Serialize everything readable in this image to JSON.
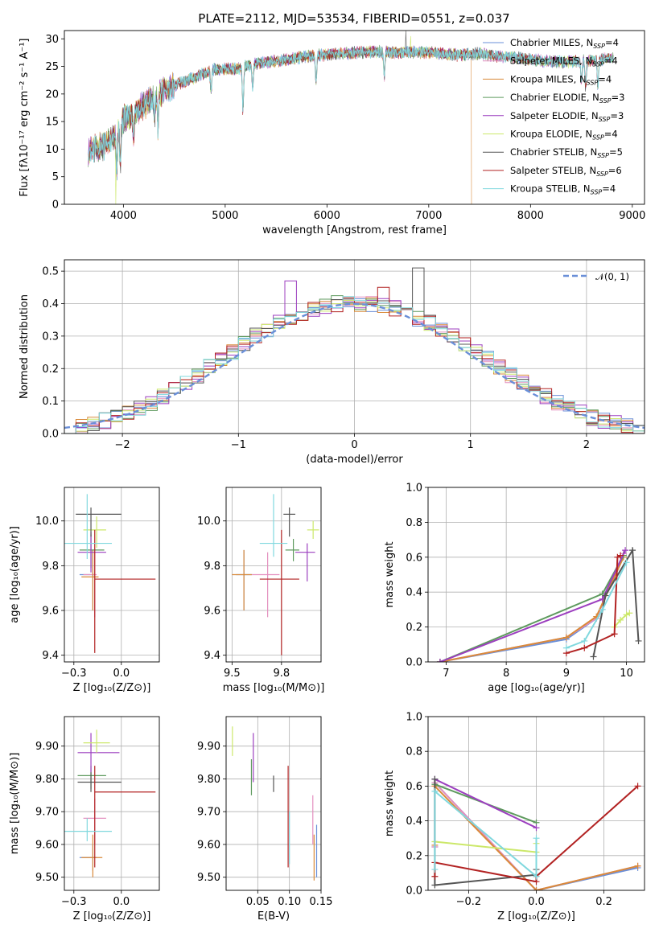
{
  "figure": {
    "title": "PLATE=2112, MJD=53534, FIBERID=0551, z=0.037"
  },
  "model_colors": {
    "Chabrier MILES": "#6a8fd8",
    "Salpeter MILES": "#e48fbf",
    "Kroupa MILES": "#d98a3a",
    "Chabrier ELODIE": "#5e9a5e",
    "Salpeter ELODIE": "#9c3fbf",
    "Kroupa ELODIE": "#cce86a",
    "Chabrier STELIB": "#555555",
    "Salpeter STELIB": "#b22222",
    "Kroupa STELIB": "#80d8de"
  },
  "legend1": [
    {
      "name": "Chabrier MILES",
      "pre": "Chabrier MILES, N",
      "sub": "SSP",
      "post": "=4"
    },
    {
      "name": "Salpeter MILES",
      "pre": "Salpeter MILES, N",
      "sub": "SSP",
      "post": "=4"
    },
    {
      "name": "Kroupa MILES",
      "pre": "Kroupa MILES, N",
      "sub": "SSP",
      "post": "=4"
    },
    {
      "name": "Chabrier ELODIE",
      "pre": "Chabrier ELODIE, N",
      "sub": "SSP",
      "post": "=3"
    },
    {
      "name": "Salpeter ELODIE",
      "pre": "Salpeter ELODIE, N",
      "sub": "SSP",
      "post": "=3"
    },
    {
      "name": "Kroupa ELODIE",
      "pre": "Kroupa ELODIE, N",
      "sub": "SSP",
      "post": "=4"
    },
    {
      "name": "Chabrier STELIB",
      "pre": "Chabrier STELIB, N",
      "sub": "SSP",
      "post": "=5"
    },
    {
      "name": "Salpeter STELIB",
      "pre": "Salpeter STELIB, N",
      "sub": "SSP",
      "post": "=6"
    },
    {
      "name": "Kroupa STELIB",
      "pre": "Kroupa STELIB, N",
      "sub": "SSP",
      "post": "=4"
    }
  ],
  "legend2": {
    "label": "𝒩(0, 1)",
    "color": "#6a8fd8"
  },
  "chart_data": [
    {
      "id": "spectrum",
      "type": "line",
      "xlabel": "wavelength [Angstrom, rest frame]",
      "ylabel": "Flux [fλ10⁻¹⁷ erg cm⁻² s⁻¹ A⁻¹]",
      "xlim": [
        3420,
        9120
      ],
      "ylim": [
        0,
        31.5
      ],
      "xticks": [
        4000,
        5000,
        6000,
        7000,
        8000,
        9000
      ],
      "yticks": [
        0,
        5,
        10,
        15,
        20,
        25,
        30
      ],
      "continuum": {
        "x": [
          3650,
          3700,
          3800,
          3900,
          4000,
          4100,
          4200,
          4300,
          4400,
          4500,
          4700,
          4900,
          5100,
          5300,
          5500,
          5700,
          5900,
          6100,
          6300,
          6500,
          6700,
          6900,
          7100,
          7300,
          7500,
          7700,
          7900,
          8100,
          8300,
          8500,
          8700,
          8820
        ],
        "y": [
          9.5,
          10,
          10.5,
          12,
          15.5,
          16.5,
          18,
          19.5,
          20.5,
          21.5,
          23,
          24.5,
          24.5,
          25.5,
          26,
          26.5,
          27,
          27.3,
          27.5,
          27.7,
          27.5,
          27.6,
          27.4,
          27,
          27.4,
          26.8,
          26.5,
          26,
          25.8,
          26,
          26.3,
          26.5
        ]
      },
      "features": [
        {
          "x": 3935,
          "y": 6
        },
        {
          "x": 3970,
          "y": 7
        },
        {
          "x": 4100,
          "y": 12
        },
        {
          "x": 4305,
          "y": 15
        },
        {
          "x": 4340,
          "y": 14
        },
        {
          "x": 4861,
          "y": 20
        },
        {
          "x": 5175,
          "y": 17
        },
        {
          "x": 5270,
          "y": 21
        },
        {
          "x": 5893,
          "y": 22
        },
        {
          "x": 6563,
          "y": 23
        },
        {
          "x": 8500,
          "y": 22
        },
        {
          "x": 8542,
          "y": 21
        },
        {
          "x": 8662,
          "y": 21
        }
      ],
      "dropouts": [
        {
          "series": "Kroupa ELODIE",
          "x": 3920
        },
        {
          "series": "Kroupa ELODIE",
          "x": 6800
        },
        {
          "series": "Kroupa MILES",
          "x": 7420
        }
      ],
      "spikes": [
        {
          "series": "Chabrier STELIB",
          "x": 6770,
          "y": 31.5
        },
        {
          "series": "Kroupa ELODIE",
          "x": 6820,
          "y": 30.5
        }
      ]
    },
    {
      "id": "residuals",
      "type": "histogram",
      "xlabel": "(data-model)/error",
      "ylabel": "Normed distribution",
      "xlim": [
        -2.5,
        2.5
      ],
      "ylim": [
        0,
        0.535
      ],
      "xticks": [
        -2,
        -1,
        0,
        1,
        2
      ],
      "yticks": [
        0.0,
        0.1,
        0.2,
        0.3,
        0.4,
        0.5
      ],
      "bin_edges_start": -2.5,
      "bin_width": 0.1,
      "base_values": [
        0.01,
        0.02,
        0.03,
        0.04,
        0.05,
        0.065,
        0.08,
        0.095,
        0.115,
        0.135,
        0.16,
        0.18,
        0.205,
        0.23,
        0.25,
        0.275,
        0.3,
        0.32,
        0.34,
        0.355,
        0.37,
        0.385,
        0.395,
        0.4,
        0.4,
        0.4,
        0.4,
        0.395,
        0.385,
        0.37,
        0.355,
        0.34,
        0.32,
        0.3,
        0.275,
        0.25,
        0.23,
        0.205,
        0.18,
        0.16,
        0.135,
        0.115,
        0.095,
        0.08,
        0.065,
        0.05,
        0.04,
        0.03,
        0.02,
        0.01
      ],
      "highlights": [
        {
          "series": "Chabrier STELIB",
          "bin": 30,
          "value": 0.51
        },
        {
          "series": "Salpeter ELODIE",
          "bin": 19,
          "value": 0.47
        },
        {
          "series": "Salpeter STELIB",
          "bin": 27,
          "value": 0.45
        }
      ],
      "normal_curve": {
        "mean": 0,
        "sigma": 1
      }
    },
    {
      "id": "age-vs-Z",
      "type": "errorbar",
      "xlabel": "Z [log₁₀(Z/Z⊙)]",
      "ylabel": "age  [log₁₀(age/yr)]",
      "xlim": [
        -0.3,
        0.2
      ],
      "ylim": [
        9.37,
        10.15
      ],
      "xticks": [
        -0.25,
        0.0
      ],
      "yticks": [
        9.4,
        9.6,
        9.8,
        10.0
      ],
      "points": [
        {
          "series": "Chabrier MILES",
          "x": -0.15,
          "y": 9.76,
          "xlo": -0.22,
          "xhi": -0.14,
          "ylo": 9.6,
          "yhi": 9.87
        },
        {
          "series": "Salpeter MILES",
          "x": -0.14,
          "y": 9.76,
          "xlo": -0.2,
          "xhi": -0.13,
          "ylo": 9.57,
          "yhi": 9.86
        },
        {
          "series": "Kroupa MILES",
          "x": -0.15,
          "y": 9.75,
          "xlo": -0.21,
          "xhi": -0.12,
          "ylo": 9.6,
          "yhi": 9.87
        },
        {
          "series": "Chabrier ELODIE",
          "x": -0.16,
          "y": 9.87,
          "xlo": -0.22,
          "xhi": -0.09,
          "ylo": 9.79,
          "yhi": 9.94
        },
        {
          "series": "Salpeter ELODIE",
          "x": -0.16,
          "y": 9.86,
          "xlo": -0.23,
          "xhi": -0.08,
          "ylo": 9.77,
          "yhi": 9.95
        },
        {
          "series": "Kroupa ELODIE",
          "x": -0.13,
          "y": 9.96,
          "xlo": -0.2,
          "xhi": -0.08,
          "ylo": 9.88,
          "yhi": 10.02
        },
        {
          "series": "Chabrier STELIB",
          "x": -0.16,
          "y": 10.03,
          "xlo": -0.24,
          "xhi": 0.0,
          "ylo": 9.93,
          "yhi": 10.06
        },
        {
          "series": "Salpeter STELIB",
          "x": -0.14,
          "y": 9.74,
          "xlo": -0.14,
          "xhi": 0.18,
          "ylo": 9.41,
          "yhi": 9.96
        },
        {
          "series": "Kroupa STELIB",
          "x": -0.18,
          "y": 9.9,
          "xlo": -0.3,
          "xhi": -0.05,
          "ylo": 9.83,
          "yhi": 10.12
        }
      ]
    },
    {
      "id": "age-vs-mass",
      "type": "errorbar",
      "xlabel": "mass [log₁₀(M/M⊙)]",
      "ylabel": "",
      "xlim": [
        9.47,
        9.95
      ],
      "ylim": [
        9.37,
        10.15
      ],
      "xticks": [
        9.5,
        9.75
      ],
      "yticks": [
        9.4,
        9.6,
        9.8,
        10.0
      ],
      "points": [
        {
          "series": "Chabrier MILES",
          "x": 9.56,
          "y": 9.76,
          "xlo": 9.52,
          "xhi": 9.6,
          "ylo": 9.6,
          "yhi": 9.87
        },
        {
          "series": "Salpeter MILES",
          "x": 9.68,
          "y": 9.76,
          "xlo": 9.6,
          "xhi": 9.74,
          "ylo": 9.57,
          "yhi": 9.86
        },
        {
          "series": "Kroupa MILES",
          "x": 9.56,
          "y": 9.76,
          "xlo": 9.5,
          "xhi": 9.6,
          "ylo": 9.6,
          "yhi": 9.87
        },
        {
          "series": "Chabrier ELODIE",
          "x": 9.81,
          "y": 9.87,
          "xlo": 9.77,
          "xhi": 9.84,
          "ylo": 9.82,
          "yhi": 9.92
        },
        {
          "series": "Salpeter ELODIE",
          "x": 9.88,
          "y": 9.86,
          "xlo": 9.82,
          "xhi": 9.92,
          "ylo": 9.73,
          "yhi": 9.9
        },
        {
          "series": "Kroupa ELODIE",
          "x": 9.91,
          "y": 9.96,
          "xlo": 9.88,
          "xhi": 9.94,
          "ylo": 9.92,
          "yhi": 10.0
        },
        {
          "series": "Chabrier STELIB",
          "x": 9.79,
          "y": 10.03,
          "xlo": 9.76,
          "xhi": 9.82,
          "ylo": 9.93,
          "yhi": 10.06
        },
        {
          "series": "Salpeter STELIB",
          "x": 9.75,
          "y": 9.74,
          "xlo": 9.64,
          "xhi": 9.84,
          "ylo": 9.4,
          "yhi": 9.96
        },
        {
          "series": "Kroupa STELIB",
          "x": 9.71,
          "y": 9.9,
          "xlo": 9.64,
          "xhi": 9.78,
          "ylo": 9.84,
          "yhi": 10.12
        }
      ]
    },
    {
      "id": "weight-vs-age",
      "type": "line",
      "xlabel": "age  [log₁₀(age/yr)]",
      "ylabel": "mass weight",
      "xlim": [
        6.7,
        10.3
      ],
      "ylim": [
        0,
        1
      ],
      "xticks": [
        7,
        8,
        9,
        10
      ],
      "yticks": [
        0.0,
        0.2,
        0.4,
        0.6,
        0.8,
        1.0
      ],
      "series": [
        {
          "name": "Chabrier MILES",
          "x": [
            6.9,
            9.0,
            9.5,
            9.95
          ],
          "y": [
            0.0,
            0.13,
            0.25,
            0.62
          ]
        },
        {
          "name": "Salpeter MILES",
          "x": [
            6.9,
            9.0,
            9.5,
            9.95
          ],
          "y": [
            0.0,
            0.14,
            0.25,
            0.62
          ]
        },
        {
          "name": "Kroupa MILES",
          "x": [
            6.9,
            9.0,
            9.5,
            9.95
          ],
          "y": [
            0.0,
            0.14,
            0.26,
            0.6
          ]
        },
        {
          "name": "Chabrier ELODIE",
          "x": [
            6.9,
            9.6,
            9.95
          ],
          "y": [
            0.0,
            0.39,
            0.61
          ]
        },
        {
          "name": "Salpeter ELODIE",
          "x": [
            6.9,
            9.6,
            9.98
          ],
          "y": [
            0.0,
            0.36,
            0.64
          ]
        },
        {
          "name": "Kroupa ELODIE",
          "x": [
            9.8,
            9.9,
            10.0,
            10.05
          ],
          "y": [
            0.2,
            0.24,
            0.27,
            0.28
          ]
        },
        {
          "name": "Chabrier STELIB",
          "x": [
            9.45,
            9.65,
            10.1,
            10.2
          ],
          "y": [
            0.03,
            0.38,
            0.64,
            0.12
          ]
        },
        {
          "name": "Salpeter STELIB",
          "x": [
            9.0,
            9.3,
            9.8,
            9.85,
            9.9
          ],
          "y": [
            0.05,
            0.08,
            0.16,
            0.6,
            0.61
          ]
        },
        {
          "name": "Kroupa STELIB",
          "x": [
            9.0,
            9.3,
            9.6,
            10.0
          ],
          "y": [
            0.08,
            0.12,
            0.3,
            0.57
          ]
        }
      ]
    },
    {
      "id": "mass-vs-Z",
      "type": "errorbar",
      "xlabel": "Z [log₁₀(Z/Z⊙)]",
      "ylabel": "mass [log₁₀(M/M⊙)]",
      "xlim": [
        -0.3,
        0.2
      ],
      "ylim": [
        9.46,
        9.99
      ],
      "xticks": [
        -0.25,
        0.0
      ],
      "yticks": [
        9.5,
        9.6,
        9.7,
        9.8,
        9.9
      ],
      "points": [
        {
          "series": "Chabrier MILES",
          "x": -0.15,
          "y": 9.56,
          "xlo": -0.22,
          "xhi": -0.13,
          "ylo": 9.52,
          "yhi": 9.6
        },
        {
          "series": "Salpeter MILES",
          "x": -0.14,
          "y": 9.68,
          "xlo": -0.2,
          "xhi": -0.08,
          "ylo": 9.6,
          "yhi": 9.74
        },
        {
          "series": "Kroupa MILES",
          "x": -0.15,
          "y": 9.56,
          "xlo": -0.21,
          "xhi": -0.1,
          "ylo": 9.5,
          "yhi": 9.63
        },
        {
          "series": "Chabrier ELODIE",
          "x": -0.16,
          "y": 9.81,
          "xlo": -0.23,
          "xhi": -0.08,
          "ylo": 9.77,
          "yhi": 9.84
        },
        {
          "series": "Salpeter ELODIE",
          "x": -0.16,
          "y": 9.88,
          "xlo": -0.23,
          "xhi": -0.01,
          "ylo": 9.82,
          "yhi": 9.94
        },
        {
          "series": "Kroupa ELODIE",
          "x": -0.13,
          "y": 9.91,
          "xlo": -0.2,
          "xhi": -0.06,
          "ylo": 9.88,
          "yhi": 9.95
        },
        {
          "series": "Chabrier STELIB",
          "x": -0.16,
          "y": 9.79,
          "xlo": -0.23,
          "xhi": 0.0,
          "ylo": 9.76,
          "yhi": 9.82
        },
        {
          "series": "Salpeter STELIB",
          "x": -0.14,
          "y": 9.76,
          "xlo": -0.14,
          "xhi": 0.18,
          "ylo": 9.53,
          "yhi": 9.84
        },
        {
          "series": "Kroupa STELIB",
          "x": -0.18,
          "y": 9.64,
          "xlo": -0.3,
          "xhi": -0.05,
          "ylo": 9.61,
          "yhi": 9.68
        }
      ]
    },
    {
      "id": "mass-vs-ebv",
      "type": "errorbar",
      "xlabel": "E(B-V)",
      "ylabel": "",
      "xlim": [
        0.0,
        0.15
      ],
      "ylim": [
        9.46,
        9.99
      ],
      "xticks": [
        0.05,
        0.1,
        0.15
      ],
      "yticks": [
        9.5,
        9.6,
        9.7,
        9.8,
        9.9
      ],
      "points": [
        {
          "series": "Chabrier MILES",
          "x": 0.143,
          "y": 9.56,
          "ylo": 9.5,
          "yhi": 9.66
        },
        {
          "series": "Salpeter MILES",
          "x": 0.137,
          "y": 9.68,
          "ylo": 9.6,
          "yhi": 9.75
        },
        {
          "series": "Kroupa MILES",
          "x": 0.139,
          "y": 9.56,
          "ylo": 9.49,
          "yhi": 9.63
        },
        {
          "series": "Chabrier ELODIE",
          "x": 0.04,
          "y": 9.81,
          "ylo": 9.75,
          "yhi": 9.86
        },
        {
          "series": "Salpeter ELODIE",
          "x": 0.043,
          "y": 9.88,
          "ylo": 9.79,
          "yhi": 9.94
        },
        {
          "series": "Kroupa ELODIE",
          "x": 0.01,
          "y": 9.91,
          "ylo": 9.87,
          "yhi": 9.96
        },
        {
          "series": "Chabrier STELIB",
          "x": 0.075,
          "y": 9.78,
          "ylo": 9.76,
          "yhi": 9.81
        },
        {
          "series": "Salpeter STELIB",
          "x": 0.098,
          "y": 9.76,
          "ylo": 9.53,
          "yhi": 9.84
        },
        {
          "series": "Kroupa STELIB",
          "x": 0.1,
          "y": 9.64,
          "ylo": 9.54,
          "yhi": 9.7
        }
      ]
    },
    {
      "id": "weight-vs-Z",
      "type": "line",
      "xlabel": "Z [log₁₀(Z/Z⊙)]",
      "ylabel": "mass weight",
      "xlim": [
        -0.32,
        0.32
      ],
      "ylim": [
        0,
        1
      ],
      "xticks": [
        -0.2,
        0.0,
        0.2
      ],
      "yticks": [
        0.0,
        0.2,
        0.4,
        0.6,
        0.8,
        1.0
      ],
      "series": [
        {
          "name": "Chabrier MILES",
          "x": [
            -0.3,
            -0.3,
            0.0,
            0.3
          ],
          "y": [
            0.25,
            0.62,
            0.0,
            0.13
          ]
        },
        {
          "name": "Salpeter MILES",
          "x": [
            -0.3,
            -0.3,
            0.0,
            0.3
          ],
          "y": [
            0.25,
            0.62,
            0.0,
            0.14
          ]
        },
        {
          "name": "Kroupa MILES",
          "x": [
            -0.3,
            -0.3,
            0.0,
            0.3
          ],
          "y": [
            0.26,
            0.6,
            0.0,
            0.14
          ]
        },
        {
          "name": "Chabrier ELODIE",
          "x": [
            -0.3,
            0.0
          ],
          "y": [
            0.61,
            0.39
          ]
        },
        {
          "name": "Salpeter ELODIE",
          "x": [
            -0.3,
            0.0
          ],
          "y": [
            0.64,
            0.36
          ]
        },
        {
          "name": "Kroupa ELODIE",
          "x": [
            -0.3,
            0.0,
            0.0
          ],
          "y": [
            0.28,
            0.22,
            0.27
          ]
        },
        {
          "name": "Chabrier STELIB",
          "x": [
            -0.3,
            -0.3,
            0.0,
            0.0
          ],
          "y": [
            0.64,
            0.03,
            0.09,
            0.12
          ]
        },
        {
          "name": "Salpeter STELIB",
          "x": [
            -0.3,
            -0.3,
            0.0,
            0.0,
            0.3
          ],
          "y": [
            0.08,
            0.16,
            0.05,
            0.08,
            0.6
          ]
        },
        {
          "name": "Kroupa STELIB",
          "x": [
            -0.3,
            -0.3,
            0.0,
            0.0
          ],
          "y": [
            0.12,
            0.57,
            0.08,
            0.3
          ]
        }
      ]
    }
  ]
}
